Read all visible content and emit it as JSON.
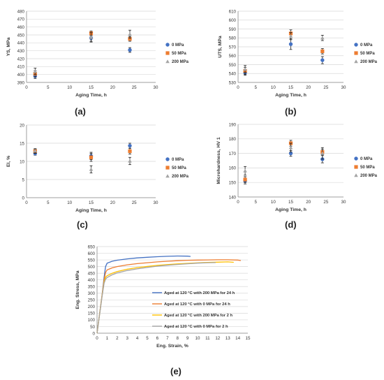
{
  "chart_data": [
    {
      "label": "(a)",
      "type": "scatter",
      "xlabel": "Aging Time, h",
      "ylabel": "YS, MPa",
      "xlim": [
        0,
        30
      ],
      "ylim": [
        390,
        480
      ],
      "xticks": [
        "0",
        "5",
        "10",
        "15",
        "20",
        "25",
        "30"
      ],
      "yticks": [
        "390",
        "400",
        "410",
        "420",
        "430",
        "440",
        "450",
        "460",
        "470",
        "480"
      ],
      "legend_position": "right",
      "series": [
        {
          "name": "0 MPa",
          "marker": "circle",
          "color": "#4472C4",
          "x": [
            2,
            15,
            24
          ],
          "y": [
            398,
            446,
            431
          ],
          "err": [
            3,
            4,
            3
          ]
        },
        {
          "name": "50 MPa",
          "marker": "square",
          "color": "#ED7D31",
          "x": [
            2,
            15,
            24
          ],
          "y": [
            401,
            452,
            445
          ],
          "err": [
            4,
            3,
            3
          ]
        },
        {
          "name": "200 MPa",
          "marker": "triangle",
          "color": "#A5A5A5",
          "x": [
            2,
            15,
            24
          ],
          "y": [
            404,
            447,
            451
          ],
          "err": [
            4,
            6,
            5
          ]
        }
      ]
    },
    {
      "label": "(b)",
      "type": "scatter",
      "xlabel": "Aging Time, h",
      "ylabel": "UTS, MPa",
      "xlim": [
        0,
        30
      ],
      "ylim": [
        530,
        610
      ],
      "xticks": [
        "0",
        "5",
        "10",
        "15",
        "20",
        "25",
        "30"
      ],
      "yticks": [
        "530",
        "540",
        "550",
        "560",
        "570",
        "580",
        "590",
        "600",
        "610"
      ],
      "legend_position": "right",
      "series": [
        {
          "name": "0 MPa",
          "marker": "circle",
          "color": "#4472C4",
          "x": [
            2,
            15,
            24
          ],
          "y": [
            541,
            573,
            555
          ],
          "err": [
            3,
            6,
            4
          ]
        },
        {
          "name": "50 MPa",
          "marker": "square",
          "color": "#ED7D31",
          "x": [
            2,
            15,
            24
          ],
          "y": [
            543,
            585,
            565
          ],
          "err": [
            4,
            4,
            3
          ]
        },
        {
          "name": "200 MPa",
          "marker": "triangle",
          "color": "#A5A5A5",
          "x": [
            2,
            15,
            24
          ],
          "y": [
            545,
            582,
            580
          ],
          "err": [
            4,
            4,
            3
          ]
        }
      ]
    },
    {
      "label": "(c)",
      "type": "scatter",
      "xlabel": "Aging Time, h",
      "ylabel": "El, %",
      "xlim": [
        0,
        30
      ],
      "ylim": [
        0,
        20
      ],
      "xticks": [
        "0",
        "5",
        "10",
        "15",
        "20",
        "25",
        "30"
      ],
      "yticks": [
        "0",
        "5",
        "10",
        "15",
        "20"
      ],
      "legend_position": "right",
      "series": [
        {
          "name": "0 MPa",
          "marker": "circle",
          "color": "#4472C4",
          "x": [
            2,
            15,
            24
          ],
          "y": [
            12.2,
            11.5,
            14.3
          ],
          "err": [
            0.5,
            1.0,
            0.7
          ]
        },
        {
          "name": "50 MPa",
          "marker": "square",
          "color": "#ED7D31",
          "x": [
            2,
            15,
            24
          ],
          "y": [
            12.8,
            11.1,
            12.8
          ],
          "err": [
            0.6,
            1.1,
            0.8
          ]
        },
        {
          "name": "200 MPa",
          "marker": "triangle",
          "color": "#A5A5A5",
          "x": [
            2,
            15,
            24
          ],
          "y": [
            12.9,
            7.8,
            10.1
          ],
          "err": [
            0.6,
            1.0,
            1.0
          ]
        }
      ]
    },
    {
      "label": "(d)",
      "type": "scatter",
      "xlabel": "Aging Time, h",
      "ylabel": "Microhardness, HV 1",
      "xlim": [
        0,
        30
      ],
      "ylim": [
        140,
        190
      ],
      "xticks": [
        "0",
        "5",
        "10",
        "15",
        "20",
        "25",
        "30"
      ],
      "yticks": [
        "140",
        "150",
        "160",
        "170",
        "180",
        "190"
      ],
      "legend_position": "right",
      "series": [
        {
          "name": "0 MPa",
          "marker": "circle",
          "color": "#4472C4",
          "x": [
            2,
            15,
            24
          ],
          "y": [
            151,
            170,
            166
          ],
          "err": [
            2,
            2,
            2.5
          ]
        },
        {
          "name": "50 MPa",
          "marker": "square",
          "color": "#ED7D31",
          "x": [
            2,
            15,
            24
          ],
          "y": [
            152,
            177,
            171
          ],
          "err": [
            2,
            2,
            2
          ]
        },
        {
          "name": "200 MPa",
          "marker": "triangle",
          "color": "#A5A5A5",
          "x": [
            2,
            15,
            24
          ],
          "y": [
            158,
            174,
            170
          ],
          "err": [
            3,
            3,
            4
          ]
        }
      ]
    },
    {
      "label": "(e)",
      "type": "line",
      "xlabel": "Eng. Strain, %",
      "ylabel": "Eng. Stress, MPa",
      "xlim": [
        0,
        15
      ],
      "ylim": [
        0,
        650
      ],
      "xticks": [
        "0",
        "1",
        "2",
        "3",
        "4",
        "5",
        "6",
        "7",
        "8",
        "9",
        "10",
        "11",
        "12",
        "13",
        "14",
        "15"
      ],
      "yticks": [
        "0",
        "50",
        "100",
        "150",
        "200",
        "250",
        "300",
        "350",
        "400",
        "450",
        "500",
        "550",
        "600",
        "650"
      ],
      "legend_position": "right",
      "series": [
        {
          "name": "Aged at 120 °C with 200 MPa for 24 h",
          "color": "#4472C4",
          "x": [
            0,
            0.5,
            0.7,
            0.85,
            1.0,
            1.5,
            2,
            3,
            4,
            5,
            6,
            7,
            8,
            9,
            9.3
          ],
          "y": [
            0,
            285,
            420,
            500,
            525,
            540,
            548,
            558,
            565,
            570,
            574,
            577,
            579,
            578,
            576
          ]
        },
        {
          "name": "Aged at 120 °C with 0 MPa for 24 h",
          "color": "#ED7D31",
          "x": [
            0,
            0.5,
            0.7,
            0.85,
            1.0,
            1.5,
            2,
            3,
            4,
            5,
            6,
            7,
            8,
            9,
            10,
            11,
            12,
            13,
            14,
            14.3
          ],
          "y": [
            0,
            285,
            400,
            455,
            475,
            490,
            500,
            513,
            522,
            529,
            535,
            540,
            544,
            547,
            549,
            550,
            551,
            551,
            549,
            545
          ]
        },
        {
          "name": "Aged at 120 °C with 200 MPa for 2 h",
          "color": "#FFC000",
          "x": [
            0,
            0.5,
            0.7,
            0.85,
            1.0,
            1.5,
            2,
            3,
            4,
            5,
            6,
            7,
            8,
            9,
            10,
            11,
            12,
            13,
            13.6
          ],
          "y": [
            0,
            280,
            385,
            420,
            432,
            450,
            463,
            480,
            492,
            501,
            509,
            515,
            520,
            524,
            528,
            531,
            533,
            535,
            532
          ]
        },
        {
          "name": "Aged at 120 °C with 0 MPa for 2 h",
          "color": "#A5A5A5",
          "x": [
            0,
            0.5,
            0.7,
            0.85,
            1.0,
            1.5,
            2,
            3,
            4,
            5,
            6,
            7,
            8,
            9,
            10,
            11,
            11.8
          ],
          "y": [
            0,
            275,
            375,
            405,
            418,
            438,
            452,
            470,
            483,
            494,
            503,
            510,
            516,
            521,
            526,
            529,
            530
          ]
        }
      ]
    }
  ]
}
